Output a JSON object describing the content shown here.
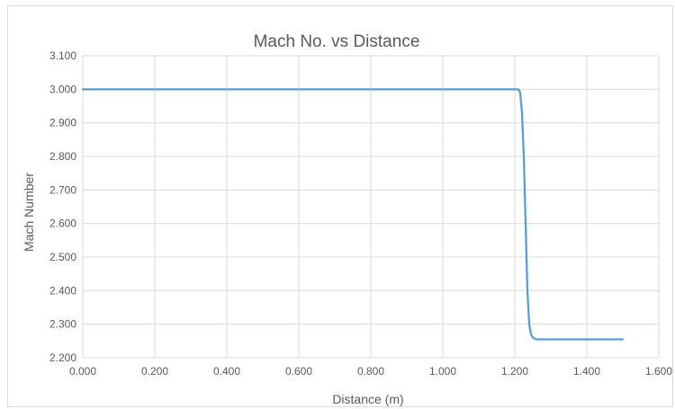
{
  "chart_data": {
    "type": "line",
    "title": "Mach No. vs Distance",
    "xlabel": "Distance (m)",
    "ylabel": "Mach Number",
    "xlim": [
      0,
      1.6
    ],
    "ylim": [
      2.2,
      3.1
    ],
    "xticks": [
      "0.000",
      "0.200",
      "0.400",
      "0.600",
      "0.800",
      "1.000",
      "1.200",
      "1.400",
      "1.600"
    ],
    "yticks": [
      "2.200",
      "2.300",
      "2.400",
      "2.500",
      "2.600",
      "2.700",
      "2.800",
      "2.900",
      "3.000",
      "3.100"
    ],
    "grid": true,
    "legend": "none",
    "series": [
      {
        "color": "#5b9bd5",
        "x": [
          0.0,
          1.2,
          1.21,
          1.215,
          1.22,
          1.225,
          1.23,
          1.235,
          1.24,
          1.245,
          1.25,
          1.26,
          1.3,
          1.5
        ],
        "y": [
          3.0,
          3.0,
          3.0,
          2.99,
          2.93,
          2.8,
          2.6,
          2.4,
          2.3,
          2.27,
          2.26,
          2.255,
          2.255,
          2.255
        ]
      }
    ]
  }
}
